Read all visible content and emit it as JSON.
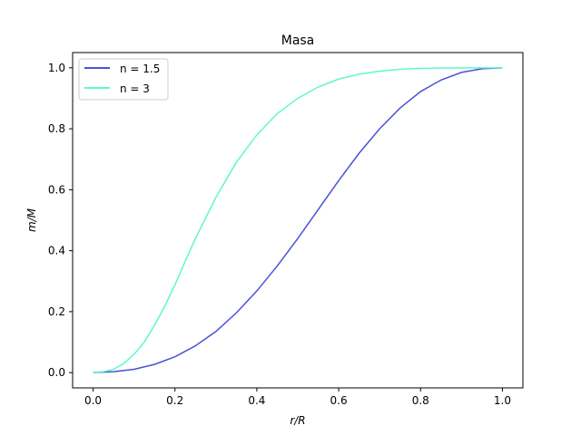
{
  "chart_data": {
    "type": "line",
    "title": "Masa",
    "xlabel": "r/R",
    "ylabel": "m/M",
    "xlim": [
      -0.05,
      1.05
    ],
    "ylim": [
      -0.05,
      1.05
    ],
    "xticks": [
      "0.0",
      "0.2",
      "0.4",
      "0.6",
      "0.8",
      "1.0"
    ],
    "yticks": [
      "0.0",
      "0.2",
      "0.4",
      "0.6",
      "0.8",
      "1.0"
    ],
    "grid": false,
    "legend_position": "top-left",
    "series": [
      {
        "name": "n = 1.5",
        "color": "#4a52d6",
        "x": [
          0.0,
          0.05,
          0.1,
          0.15,
          0.2,
          0.25,
          0.3,
          0.35,
          0.4,
          0.45,
          0.5,
          0.55,
          0.6,
          0.65,
          0.7,
          0.75,
          0.8,
          0.85,
          0.9,
          0.95,
          1.0
        ],
        "y": [
          0.0,
          0.003,
          0.011,
          0.027,
          0.052,
          0.088,
          0.135,
          0.196,
          0.268,
          0.35,
          0.44,
          0.535,
          0.63,
          0.72,
          0.8,
          0.868,
          0.922,
          0.96,
          0.985,
          0.997,
          1.0
        ]
      },
      {
        "name": "n = 3",
        "color": "#5ef7cf",
        "x": [
          0.0,
          0.025,
          0.05,
          0.075,
          0.1,
          0.125,
          0.15,
          0.175,
          0.2,
          0.225,
          0.25,
          0.3,
          0.35,
          0.4,
          0.45,
          0.5,
          0.55,
          0.6,
          0.65,
          0.7,
          0.75,
          0.8,
          0.85,
          0.9,
          0.95,
          1.0
        ],
        "y": [
          0.0,
          0.003,
          0.011,
          0.03,
          0.06,
          0.1,
          0.155,
          0.218,
          0.288,
          0.365,
          0.44,
          0.575,
          0.69,
          0.78,
          0.85,
          0.9,
          0.937,
          0.963,
          0.979,
          0.989,
          0.995,
          0.998,
          0.999,
          1.0,
          1.0,
          1.0
        ]
      }
    ]
  }
}
